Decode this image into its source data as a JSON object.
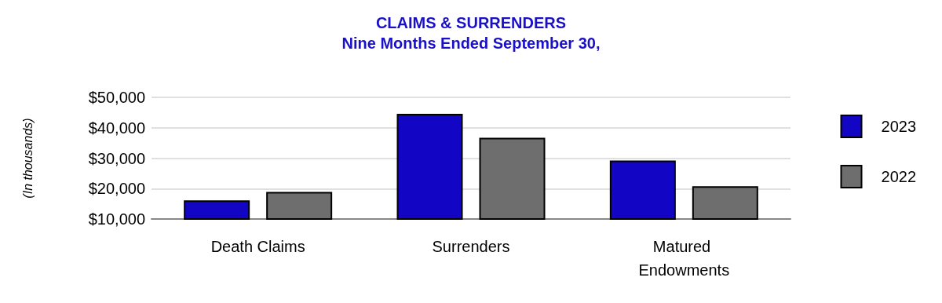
{
  "chart_data": {
    "type": "bar",
    "title": "CLAIMS & SURRENDERS",
    "subtitle": "Nine Months Ended September 30,",
    "ylabel": "(In thousands)",
    "categories": [
      "Death Claims",
      "Surrenders",
      "Matured Endowments"
    ],
    "series": [
      {
        "name": "2023",
        "color": "#1206c4",
        "values": [
          16100,
          44600,
          29200
        ]
      },
      {
        "name": "2022",
        "color": "#6e6e6e",
        "values": [
          18900,
          36700,
          20800
        ]
      }
    ],
    "ylim": [
      10000,
      50000
    ],
    "yticks": [
      {
        "value": 10000,
        "label": "$10,000"
      },
      {
        "value": 20000,
        "label": "$20,000"
      },
      {
        "value": 30000,
        "label": "$30,000"
      },
      {
        "value": 40000,
        "label": "$40,000"
      },
      {
        "value": 50000,
        "label": "$50,000"
      }
    ],
    "grid": "y",
    "legend": "right"
  }
}
